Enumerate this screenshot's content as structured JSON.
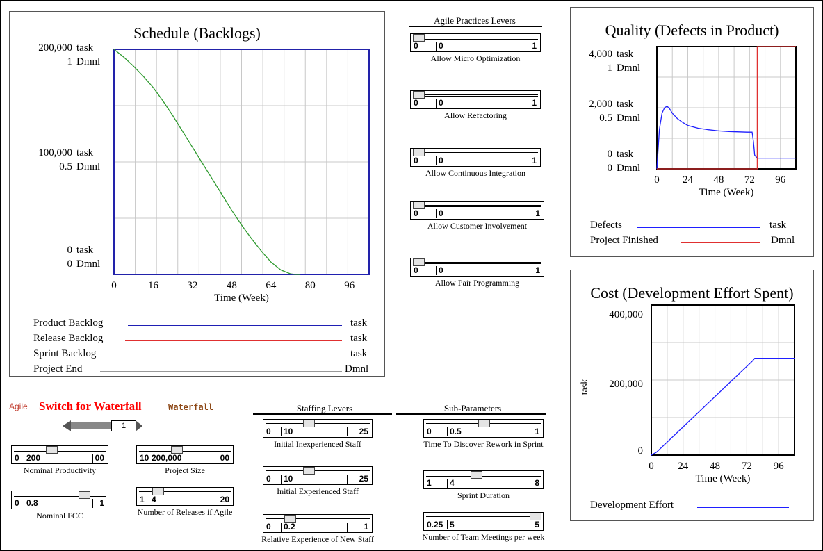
{
  "schedule": {
    "title": "Schedule (Backlogs)",
    "left_labels": [
      {
        "n1": "200,000",
        "u1": "task",
        "n2": "1",
        "u2": "Dmnl"
      },
      {
        "n1": "100,000",
        "u1": "task",
        "n2": "0.5",
        "u2": "Dmnl"
      },
      {
        "n1": "0",
        "u1": "task",
        "n2": "0",
        "u2": "Dmnl"
      }
    ],
    "legend": [
      {
        "name": "Product Backlog",
        "unit": "task",
        "color": "#1f1fb4"
      },
      {
        "name": "Release Backlog",
        "unit": "task",
        "color": "#e03030"
      },
      {
        "name": "Sprint Backlog",
        "unit": "task",
        "color": "#2f9a2f"
      },
      {
        "name": "Project End",
        "unit": "Dmnl",
        "color": "#999999"
      }
    ],
    "chart_data": {
      "type": "line",
      "xlabel": "Time (Week)",
      "x_ticks": [
        "0",
        "16",
        "32",
        "48",
        "64",
        "80",
        "96"
      ],
      "xlim": [
        0,
        104
      ],
      "ylim": [
        0,
        200000
      ],
      "grid": true,
      "series": [
        {
          "name": "Sprint Backlog",
          "color": "#2f9a2f",
          "x": [
            0,
            4,
            8,
            12,
            16,
            20,
            24,
            28,
            32,
            36,
            40,
            44,
            48,
            52,
            56,
            60,
            64,
            68,
            72,
            74,
            76
          ],
          "y": [
            200000,
            193000,
            185000,
            176000,
            166000,
            154000,
            141000,
            127000,
            113000,
            99000,
            85000,
            71000,
            57000,
            44000,
            32000,
            21000,
            11000,
            4000,
            500,
            0,
            0
          ]
        },
        {
          "name": "Product Backlog",
          "color": "#1f1fb4",
          "x": [
            76,
            104
          ],
          "y": [
            0,
            0
          ]
        }
      ]
    }
  },
  "quality": {
    "title": "Quality (Defects in Product)",
    "left_labels": [
      {
        "n1": "4,000",
        "u1": "task",
        "n2": "1",
        "u2": "Dmnl"
      },
      {
        "n1": "2,000",
        "u1": "task",
        "n2": "0.5",
        "u2": "Dmnl"
      },
      {
        "n1": "0",
        "u1": "task",
        "n2": "0",
        "u2": "Dmnl"
      }
    ],
    "legend": [
      {
        "name": "Defects",
        "unit": "task",
        "color": "#1f1fff"
      },
      {
        "name": "Project Finished",
        "unit": "Dmnl",
        "color": "#e03030"
      }
    ],
    "chart_data": {
      "type": "line",
      "xlabel": "Time (Week)",
      "x_ticks": [
        "0",
        "24",
        "48",
        "72",
        "96"
      ],
      "xlim": [
        0,
        108
      ],
      "ylim": [
        0,
        4000
      ],
      "grid": true,
      "series": [
        {
          "name": "Defects",
          "color": "#1f1fff",
          "x": [
            0,
            2,
            4,
            6,
            8,
            10,
            12,
            16,
            20,
            24,
            32,
            40,
            48,
            56,
            64,
            70,
            74,
            75,
            76,
            78,
            90,
            108
          ],
          "y": [
            0,
            1300,
            1820,
            2000,
            2050,
            1960,
            1820,
            1640,
            1520,
            1420,
            1330,
            1280,
            1240,
            1220,
            1210,
            1200,
            1200,
            900,
            450,
            350,
            350,
            350
          ]
        },
        {
          "name": "Project Finished",
          "color": "#e03030",
          "x": [
            0,
            78,
            78,
            108
          ],
          "y": [
            0,
            0,
            4000,
            4000
          ]
        }
      ]
    }
  },
  "cost": {
    "title": "Cost (Development Effort Spent)",
    "y_ticks": [
      "400,000",
      "200,000",
      "0"
    ],
    "ylabel": "task",
    "legend": [
      {
        "name": "Development Effort",
        "color": "#1f1fff"
      }
    ],
    "chart_data": {
      "type": "line",
      "xlabel": "Time (Week)",
      "x_ticks": [
        "0",
        "24",
        "48",
        "72",
        "96"
      ],
      "xlim": [
        0,
        108
      ],
      "ylim": [
        0,
        400000
      ],
      "grid": true,
      "series": [
        {
          "name": "Development Effort",
          "color": "#1f1fff",
          "x": [
            0,
            4,
            76,
            78,
            108
          ],
          "y": [
            0,
            8000,
            250000,
            258000,
            258000
          ]
        }
      ]
    }
  },
  "agile_levers": {
    "title": "Agile Practices Levers",
    "sliders": [
      {
        "label": "Allow Micro Optimization",
        "min": "0",
        "max": "1",
        "value": "0",
        "level": 0
      },
      {
        "label": "Allow Refactoring",
        "min": "0",
        "max": "1",
        "value": "0",
        "level": 0
      },
      {
        "label": "Allow Continuous Integration",
        "min": "0",
        "max": "1",
        "value": "0",
        "level": 0
      },
      {
        "label": "Allow Customer Involvement",
        "min": "0",
        "max": "1",
        "value": "0",
        "level": 0
      },
      {
        "label": "Allow Pair Programming",
        "min": "0",
        "max": "1",
        "value": "0",
        "level": 0
      }
    ]
  },
  "switch": {
    "agile_label": "Agile",
    "title": "Switch for Waterfall",
    "waterfall_label": "Waterfall",
    "value": "1"
  },
  "left_sliders": [
    {
      "label": "Nominal Productivity",
      "min": "0",
      "max": "00",
      "value": "200",
      "level": 0.4
    },
    {
      "label": "Project Size",
      "min": "10",
      "max": "00",
      "value": "200,000",
      "level": 0.4
    },
    {
      "label": "Nominal FCC",
      "min": "0",
      "max": "1",
      "value": "0.8",
      "level": 0.8
    },
    {
      "label": "Number of Releases if Agile",
      "min": "1",
      "max": "20",
      "value": "4",
      "level": 0.16
    }
  ],
  "staffing": {
    "title": "Staffing Levers",
    "sliders": [
      {
        "label": "Initial Inexperienced Staff",
        "min": "0",
        "max": "25",
        "value": "10",
        "level": 0.4
      },
      {
        "label": "Initial Experienced Staff",
        "min": "0",
        "max": "25",
        "value": "10",
        "level": 0.4
      },
      {
        "label": "Relative Experience of New Staff",
        "min": "0",
        "max": "1",
        "value": "0.2",
        "level": 0.2
      }
    ]
  },
  "sub_params": {
    "title": "Sub-Parameters",
    "sliders": [
      {
        "label": "Time To Discover Rework in Sprint",
        "min": "0",
        "max": "1",
        "value": "0.5",
        "level": 0.5
      },
      {
        "label": "Sprint Duration",
        "min": "1",
        "max": "8",
        "value": "4",
        "level": 0.43
      },
      {
        "label": "Number of Team Meetings per week",
        "min": "0.25",
        "max": "5",
        "value": "5",
        "level": 1
      }
    ]
  }
}
